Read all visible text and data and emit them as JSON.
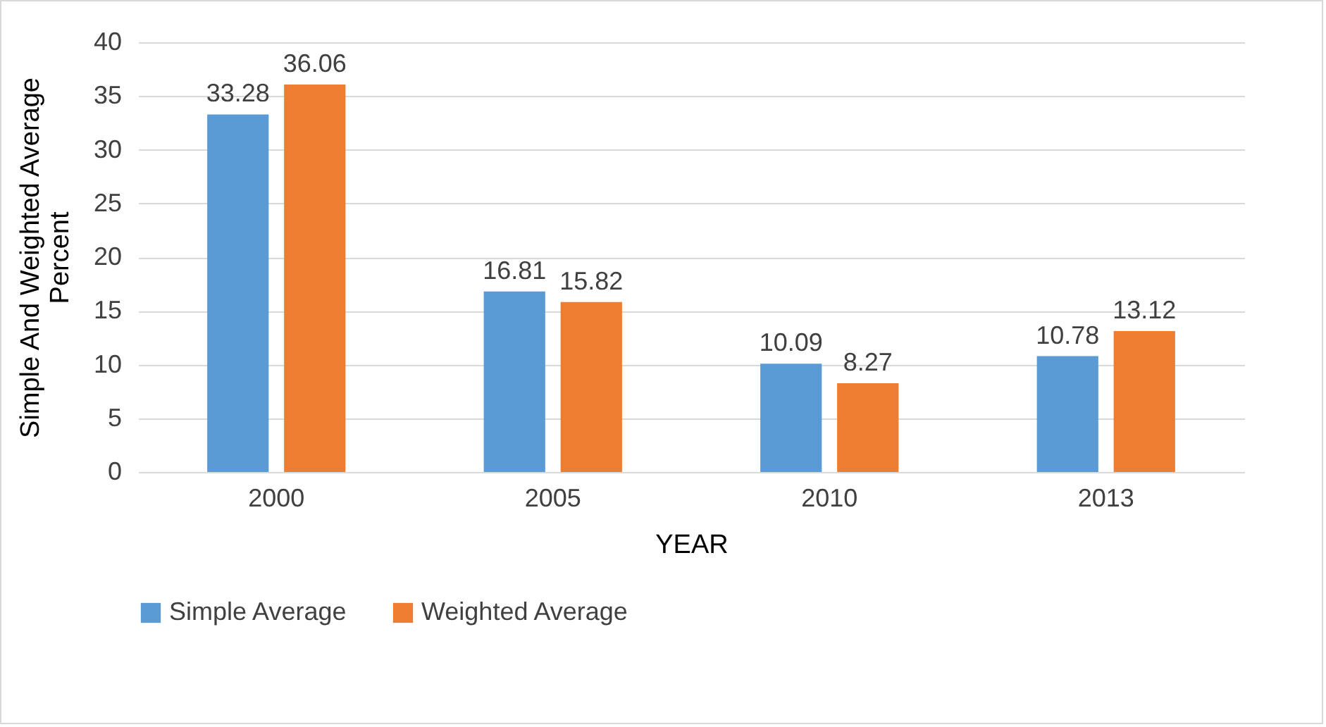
{
  "chart_data": {
    "type": "bar",
    "xlabel": "YEAR",
    "ylabel": "Simple And Weighted Average Percent",
    "categories": [
      "2000",
      "2005",
      "2010",
      "2013"
    ],
    "series": [
      {
        "name": "Simple Average",
        "color": "#5b9bd5",
        "values": [
          33.28,
          16.81,
          10.09,
          10.78
        ]
      },
      {
        "name": "Weighted Average",
        "color": "#ed7d31",
        "values": [
          36.06,
          15.82,
          8.27,
          13.12
        ]
      }
    ],
    "ylim": [
      0,
      40
    ],
    "yticks": [
      0,
      5,
      10,
      15,
      20,
      25,
      30,
      35,
      40
    ],
    "grid": "y",
    "legend": "bottom",
    "data_labels": true
  }
}
